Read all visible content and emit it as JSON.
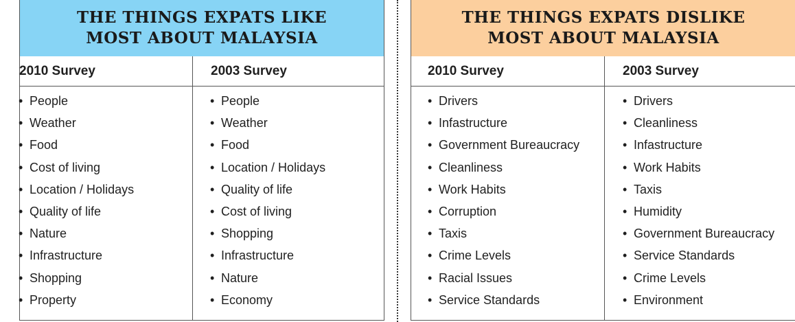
{
  "left_panel": {
    "title": "THE THINGS EXPATS LIKE\nMOST ABOUT MALAYSIA",
    "color": "#87d4f5",
    "columns": [
      {
        "heading": "2010 Survey",
        "items": [
          "People",
          "Weather",
          "Food",
          "Cost of living",
          "Location / Holidays",
          "Quality of life",
          "Nature",
          "Infrastructure",
          "Shopping",
          "Property"
        ]
      },
      {
        "heading": "2003 Survey",
        "items": [
          "People",
          "Weather",
          "Food",
          "Location / Holidays",
          "Quality of life",
          "Cost of living",
          "Shopping",
          "Infrastructure",
          "Nature",
          "Economy"
        ]
      }
    ]
  },
  "right_panel": {
    "title": "THE THINGS EXPATS DISLIKE\nMOST ABOUT MALAYSIA",
    "color": "#fccf9e",
    "columns": [
      {
        "heading": "2010 Survey",
        "items": [
          "Drivers",
          "Infastructure",
          "Government Bureaucracy",
          "Cleanliness",
          "Work Habits",
          "Corruption",
          "Taxis",
          "Crime Levels",
          "Racial Issues",
          "Service Standards"
        ]
      },
      {
        "heading": "2003 Survey",
        "items": [
          "Drivers",
          "Cleanliness",
          "Infastructure",
          "Work Habits",
          "Taxis",
          "Humidity",
          "Government Bureaucracy",
          "Service Standards",
          "Crime Levels",
          "Environment"
        ]
      }
    ]
  }
}
